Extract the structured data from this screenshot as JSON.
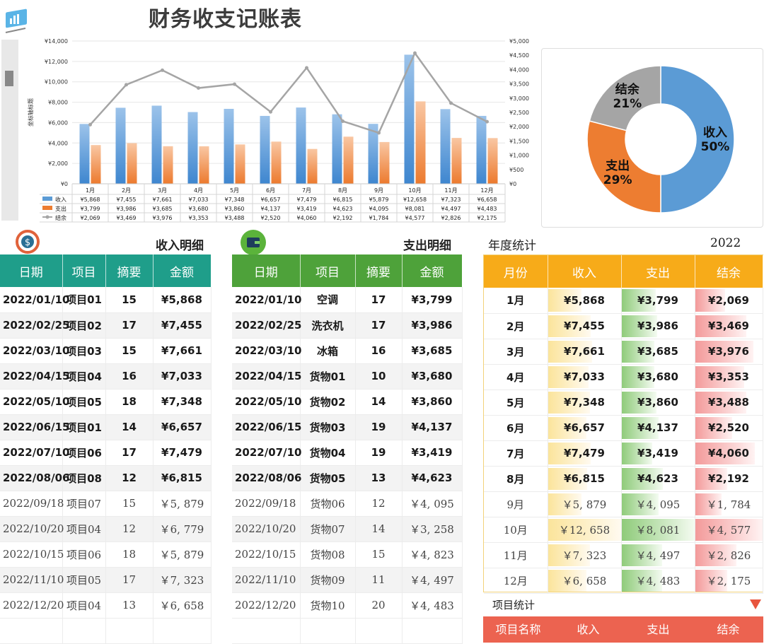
{
  "title": "财务收支记账表",
  "colors": {
    "income": "#5b9bd5",
    "expense": "#ed7d31",
    "balance": "#a5a5a5",
    "teal": "#1f9e8a",
    "green": "#4ea23a",
    "yellow": "#f7ab19",
    "red": "#ec6350"
  },
  "chart_data": [
    {
      "type": "bar",
      "categories": [
        "1月",
        "2月",
        "3月",
        "4月",
        "5月",
        "6月",
        "7月",
        "8月",
        "9月",
        "10月",
        "11月",
        "12月"
      ],
      "series": [
        {
          "name": "收入",
          "type": "bar",
          "axis": "left",
          "values": [
            5868,
            7455,
            7661,
            7033,
            7348,
            6657,
            7479,
            6815,
            5879,
            12658,
            7323,
            6658
          ]
        },
        {
          "name": "支出",
          "type": "bar",
          "axis": "left",
          "values": [
            3799,
            3986,
            3685,
            3680,
            3860,
            4137,
            3419,
            4623,
            4095,
            8081,
            4497,
            4483
          ]
        },
        {
          "name": "结余",
          "type": "line",
          "axis": "right",
          "values": [
            2069,
            3469,
            3976,
            3353,
            3488,
            2520,
            4060,
            2192,
            1784,
            4577,
            2826,
            2175
          ]
        }
      ],
      "y_left_ticks": [
        "¥14,000",
        "¥12,000",
        "¥10,000",
        "¥8,000",
        "¥6,000",
        "¥4,000",
        "¥2,000",
        "¥0"
      ],
      "y_right_ticks": [
        "¥5,000",
        "¥4,500",
        "¥4,000",
        "¥3,500",
        "¥3,000",
        "¥2,500",
        "¥2,000",
        "¥1,500",
        "¥1,000",
        "¥500",
        "¥0"
      ],
      "ylim_left": [
        0,
        14000
      ],
      "ylim_right": [
        0,
        5000
      ],
      "ylabel": "坐标轴标题",
      "data_table": {
        "rows": [
          {
            "label": "收入",
            "values": [
              "¥5,868",
              "¥7,455",
              "¥7,661",
              "¥7,033",
              "¥7,348",
              "¥6,657",
              "¥7,479",
              "¥6,815",
              "¥5,879",
              "¥12,658",
              "¥7,323",
              "¥6,658"
            ]
          },
          {
            "label": "支出",
            "values": [
              "¥3,799",
              "¥3,986",
              "¥3,685",
              "¥3,680",
              "¥3,860",
              "¥4,137",
              "¥3,419",
              "¥4,623",
              "¥4,095",
              "¥8,081",
              "¥4,497",
              "¥4,483"
            ]
          },
          {
            "label": "结余",
            "values": [
              "¥2,069",
              "¥3,469",
              "¥3,976",
              "¥3,353",
              "¥3,488",
              "¥2,520",
              "¥4,060",
              "¥2,192",
              "¥1,784",
              "¥4,577",
              "¥2,826",
              "¥2,175"
            ]
          }
        ]
      }
    },
    {
      "type": "pie",
      "slices": [
        {
          "name": "收入",
          "value": 50,
          "label": "50%",
          "color": "#5b9bd5"
        },
        {
          "name": "支出",
          "value": 29,
          "label": "29%",
          "color": "#ed7d31"
        },
        {
          "name": "结余",
          "value": 21,
          "label": "21%",
          "color": "#a5a5a5"
        }
      ]
    }
  ],
  "income": {
    "title": "收入明细",
    "headers": [
      "日期",
      "项目",
      "摘要",
      "金额"
    ],
    "rows": [
      [
        "2022/01/10",
        "项目01",
        "15",
        "¥5,868"
      ],
      [
        "2022/02/25",
        "项目02",
        "17",
        "¥7,455"
      ],
      [
        "2022/03/10",
        "项目03",
        "15",
        "¥7,661"
      ],
      [
        "2022/04/15",
        "项目04",
        "16",
        "¥7,033"
      ],
      [
        "2022/05/10",
        "项目05",
        "18",
        "¥7,348"
      ],
      [
        "2022/06/15",
        "项目01",
        "14",
        "¥6,657"
      ],
      [
        "2022/07/10",
        "项目06",
        "17",
        "¥7,479"
      ],
      [
        "2022/08/06",
        "项目08",
        "12",
        "¥6,815"
      ],
      [
        "2022/09/18",
        "项目07",
        "15",
        "￥5, 879"
      ],
      [
        "2022/10/20",
        "项目04",
        "12",
        "￥6, 779"
      ],
      [
        "2022/10/15",
        "项目06",
        "18",
        "￥5, 879"
      ],
      [
        "2022/11/10",
        "项目05",
        "17",
        "￥7, 323"
      ],
      [
        "2022/12/20",
        "项目04",
        "13",
        "￥6, 658"
      ]
    ]
  },
  "expense": {
    "title": "支出明细",
    "headers": [
      "日期",
      "项目",
      "摘要",
      "金额"
    ],
    "rows": [
      [
        "2022/01/10",
        "空调",
        "17",
        "¥3,799"
      ],
      [
        "2022/02/25",
        "洗衣机",
        "17",
        "¥3,986"
      ],
      [
        "2022/03/10",
        "冰箱",
        "16",
        "¥3,685"
      ],
      [
        "2022/04/15",
        "货物01",
        "10",
        "¥3,680"
      ],
      [
        "2022/05/10",
        "货物02",
        "14",
        "¥3,860"
      ],
      [
        "2022/06/15",
        "货物03",
        "19",
        "¥4,137"
      ],
      [
        "2022/07/10",
        "货物04",
        "19",
        "¥3,419"
      ],
      [
        "2022/08/06",
        "货物05",
        "13",
        "¥4,623"
      ],
      [
        "2022/09/18",
        "货物06",
        "12",
        "￥4, 095"
      ],
      [
        "2022/10/20",
        "货物07",
        "14",
        "￥3, 258"
      ],
      [
        "2022/10/15",
        "货物08",
        "15",
        "￥4, 823"
      ],
      [
        "2022/11/10",
        "货物09",
        "11",
        "￥4, 497"
      ],
      [
        "2022/12/20",
        "货物10",
        "20",
        "￥4, 483"
      ]
    ]
  },
  "annual": {
    "title": "年度统计",
    "year": "2022",
    "headers": [
      "月份",
      "收入",
      "支出",
      "结余"
    ],
    "rows": [
      {
        "month": "1月",
        "income": "¥5,868",
        "expense": "¥3,799",
        "balance": "¥2,069",
        "iv": 5868,
        "ev": 3799,
        "bv": 2069
      },
      {
        "month": "2月",
        "income": "¥7,455",
        "expense": "¥3,986",
        "balance": "¥3,469",
        "iv": 7455,
        "ev": 3986,
        "bv": 3469
      },
      {
        "month": "3月",
        "income": "¥7,661",
        "expense": "¥3,685",
        "balance": "¥3,976",
        "iv": 7661,
        "ev": 3685,
        "bv": 3976
      },
      {
        "month": "4月",
        "income": "¥7,033",
        "expense": "¥3,680",
        "balance": "¥3,353",
        "iv": 7033,
        "ev": 3680,
        "bv": 3353
      },
      {
        "month": "5月",
        "income": "¥7,348",
        "expense": "¥3,860",
        "balance": "¥3,488",
        "iv": 7348,
        "ev": 3860,
        "bv": 3488
      },
      {
        "month": "6月",
        "income": "¥6,657",
        "expense": "¥4,137",
        "balance": "¥2,520",
        "iv": 6657,
        "ev": 4137,
        "bv": 2520
      },
      {
        "month": "7月",
        "income": "¥7,479",
        "expense": "¥3,419",
        "balance": "¥4,060",
        "iv": 7479,
        "ev": 3419,
        "bv": 4060
      },
      {
        "month": "8月",
        "income": "¥6,815",
        "expense": "¥4,623",
        "balance": "¥2,192",
        "iv": 6815,
        "ev": 4623,
        "bv": 2192
      },
      {
        "month": "9月",
        "income": "￥5, 879",
        "expense": "￥4, 095",
        "balance": "￥1, 784",
        "iv": 5879,
        "ev": 4095,
        "bv": 1784
      },
      {
        "month": "10月",
        "income": "￥12, 658",
        "expense": "￥8, 081",
        "balance": "￥4, 577",
        "iv": 12658,
        "ev": 8081,
        "bv": 4577
      },
      {
        "month": "11月",
        "income": "￥7, 323",
        "expense": "￥4, 497",
        "balance": "￥2, 826",
        "iv": 7323,
        "ev": 4497,
        "bv": 2826
      },
      {
        "month": "12月",
        "income": "￥6, 658",
        "expense": "￥4, 483",
        "balance": "￥2, 175",
        "iv": 6658,
        "ev": 4483,
        "bv": 2175
      }
    ]
  },
  "project": {
    "title": "项目统计",
    "headers": [
      "项目名称",
      "收入",
      "支出",
      "结余"
    ]
  }
}
